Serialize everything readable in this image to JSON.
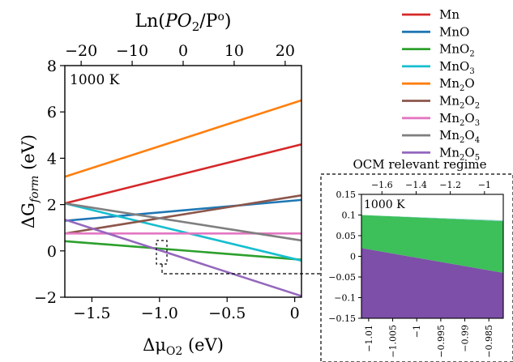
{
  "chart_data": [
    {
      "type": "line",
      "annotation": "1000 K",
      "xlabel": "Δμ",
      "xlabel_sub": "O2",
      "xlabel_unit": " (eV)",
      "ylabel": "ΔG",
      "ylabel_sub": "form",
      "ylabel_unit": " (eV)",
      "top_axis_label": {
        "a": "Ln(",
        "b": "P",
        "c": "O",
        "d": "2",
        "e": "/P",
        "f": "o",
        "g": ")"
      },
      "xlim": [
        -1.7,
        0.05
      ],
      "ylim": [
        -2,
        8
      ],
      "x_ticks": [
        -1.5,
        -1.0,
        -0.5,
        0
      ],
      "x_tick_labels": [
        "−1.5",
        "−1.0",
        "−0.5",
        "0"
      ],
      "y_ticks": [
        -2,
        0,
        2,
        4,
        6,
        8
      ],
      "y_tick_labels": [
        "−2",
        "0",
        "2",
        "4",
        "6",
        "8"
      ],
      "top_ticks": [
        -20,
        -10,
        0,
        10,
        20
      ],
      "top_tick_labels": [
        "−20",
        "−10",
        "0",
        "10",
        "20"
      ],
      "top_axis_range": [
        -23.2,
        23.2
      ],
      "grid": false,
      "legend_position": "outside-right",
      "series": [
        {
          "name": "Mn",
          "sub": "",
          "name2": "",
          "sub2": "",
          "color": "#d62728",
          "x": [
            -1.7,
            0.05
          ],
          "y": [
            2.05,
            4.6
          ]
        },
        {
          "name": "MnO",
          "sub": "",
          "name2": "",
          "sub2": "",
          "color": "#1f77b4",
          "x": [
            -1.7,
            0.05
          ],
          "y": [
            1.3,
            2.2
          ]
        },
        {
          "name": "MnO",
          "sub": "2",
          "name2": "",
          "sub2": "",
          "color": "#2ca02c",
          "x": [
            -1.7,
            0.05
          ],
          "y": [
            0.42,
            -0.38
          ]
        },
        {
          "name": "MnO",
          "sub": "3",
          "name2": "",
          "sub2": "",
          "color": "#17becf",
          "x": [
            -1.7,
            0.05
          ],
          "y": [
            2.05,
            -0.42
          ]
        },
        {
          "name": "Mn",
          "sub": "2",
          "name2": "O",
          "sub2": "",
          "color": "#ff7f0e",
          "x": [
            -1.7,
            0.05
          ],
          "y": [
            3.2,
            6.5
          ]
        },
        {
          "name": "Mn",
          "sub": "2",
          "name2": "O",
          "sub2": "2",
          "color": "#8c564b",
          "x": [
            -1.7,
            0.05
          ],
          "y": [
            0.75,
            2.4
          ]
        },
        {
          "name": "Mn",
          "sub": "2",
          "name2": "O",
          "sub2": "3",
          "color": "#e377c2",
          "x": [
            -1.7,
            0.05
          ],
          "y": [
            0.75,
            0.75
          ]
        },
        {
          "name": "Mn",
          "sub": "2",
          "name2": "O",
          "sub2": "4",
          "color": "#7f7f7f",
          "x": [
            -1.7,
            0.05
          ],
          "y": [
            2.05,
            0.45
          ]
        },
        {
          "name": "Mn",
          "sub": "2",
          "name2": "O",
          "sub2": "5",
          "color": "#9467bd",
          "x": [
            -1.7,
            0.05
          ],
          "y": [
            1.35,
            -1.95
          ]
        }
      ]
    },
    {
      "type": "area",
      "title": "OCM relevant regime",
      "annotation": "1000 K",
      "xlim": [
        -1.0115,
        -0.982
      ],
      "ylim": [
        -0.15,
        0.15
      ],
      "x_ticks": [
        -1.01,
        -1.005,
        -1,
        -0.995,
        -0.99,
        -0.985
      ],
      "x_tick_labels": [
        "−1.01",
        "−1.005",
        "−1",
        "−0.995",
        "−0.99",
        "−0.985"
      ],
      "y_ticks": [
        0.15,
        0.1,
        0.05,
        0,
        -0.05,
        -0.1,
        -0.15
      ],
      "y_tick_labels": [
        "0.15",
        "0.1",
        "0.05",
        "0",
        "−0.05",
        "−0.1",
        "−0.15"
      ],
      "top_ticks": [
        -1.6,
        -1.4,
        -1.2,
        -1
      ],
      "top_tick_labels": [
        "−1.6",
        "−1.4",
        "−1.2",
        "−1"
      ],
      "top_axis_range": [
        -1.72,
        -0.89
      ],
      "regions": [
        {
          "color": "#7d4fa8",
          "x": [
            -1.0115,
            -0.982
          ],
          "lower": [
            -0.15,
            -0.15
          ],
          "upper": [
            0.02,
            -0.04
          ]
        },
        {
          "color": "#3dbf5a",
          "x": [
            -1.0115,
            -0.982
          ],
          "lower": [
            0.02,
            -0.04
          ],
          "upper": [
            0.1,
            0.085
          ]
        },
        {
          "color": "#7fd0c9",
          "x": [
            -1.0115,
            -0.982
          ],
          "lower": [
            0.1,
            0.085
          ],
          "upper": [
            0.1,
            0.087
          ]
        }
      ]
    }
  ]
}
